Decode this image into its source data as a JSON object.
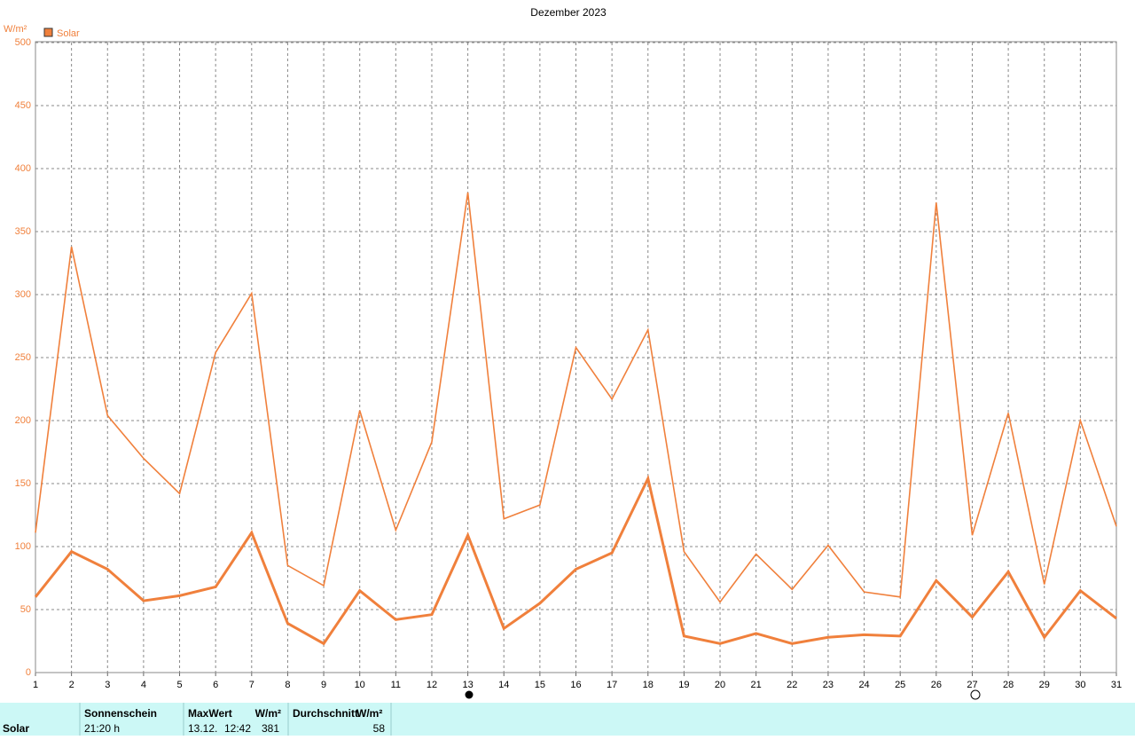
{
  "chart_data": {
    "type": "line",
    "title": "Dezember 2023",
    "y_label": "W/m²",
    "x": [
      1,
      2,
      3,
      4,
      5,
      6,
      7,
      8,
      9,
      10,
      11,
      12,
      13,
      14,
      15,
      16,
      17,
      18,
      19,
      20,
      21,
      22,
      23,
      24,
      25,
      26,
      27,
      28,
      29,
      30,
      31
    ],
    "xlim": [
      1,
      31
    ],
    "xticks": [
      1,
      2,
      3,
      4,
      5,
      6,
      7,
      8,
      9,
      10,
      11,
      12,
      13,
      14,
      15,
      16,
      17,
      18,
      19,
      20,
      21,
      22,
      23,
      24,
      25,
      26,
      27,
      28,
      29,
      30,
      31
    ],
    "ylim": [
      0,
      500
    ],
    "yticks": [
      0,
      50,
      100,
      150,
      200,
      250,
      300,
      350,
      400,
      450,
      500
    ],
    "grid": true,
    "legend": "top-left",
    "series": [
      {
        "name": "Solar",
        "color": "#f0803c",
        "values": [
          111,
          338,
          204,
          170,
          142,
          254,
          301,
          85,
          69,
          208,
          113,
          183,
          381,
          122,
          133,
          258,
          217,
          272,
          96,
          56,
          94,
          66,
          101,
          64,
          60,
          373,
          109,
          206,
          70,
          200,
          116
        ]
      },
      {
        "color": "#f0803c",
        "values": [
          60,
          96,
          82,
          57,
          61,
          68,
          111,
          39,
          23,
          65,
          42,
          46,
          109,
          35,
          55,
          82,
          95,
          154,
          29,
          23,
          31,
          23,
          28,
          30,
          29,
          73,
          44,
          80,
          28,
          65,
          43
        ]
      }
    ]
  },
  "summary": {
    "label": "Solar",
    "sunshine_header": "Sonnenschein",
    "sunshine": "21:20 h",
    "max_header": "MaxWert",
    "max_unit": "W/m²",
    "max_date": "13.12.",
    "max_time": "12:42",
    "max_value": "381",
    "avg_header": "Durchschnitt",
    "avg_unit": "W/m²",
    "avg_value": "58"
  }
}
